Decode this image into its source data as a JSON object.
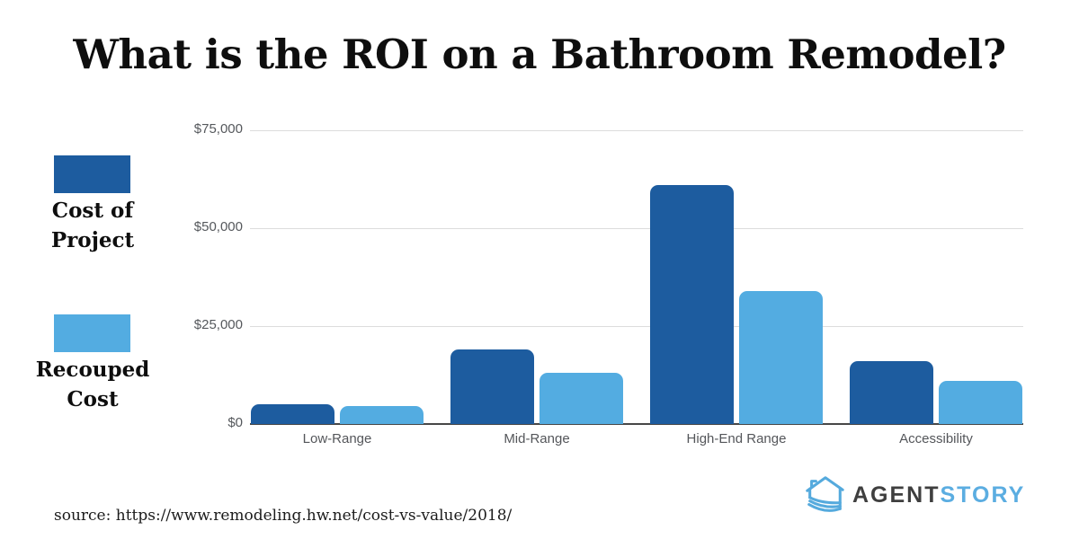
{
  "title": "What is the ROI on a Bathroom Remodel?",
  "legend": {
    "cost_label": "Cost of\nProject",
    "recouped_label": "Recouped\nCost"
  },
  "chart_data": {
    "type": "bar",
    "title": "What is the ROI on a Bathroom Remodel?",
    "categories": [
      "Low-Range",
      "Mid-Range",
      "High-End Range",
      "Accessibility"
    ],
    "series": [
      {
        "name": "Cost of Project",
        "color": "#1d5c9f",
        "values": [
          5000,
          19000,
          61000,
          16000
        ]
      },
      {
        "name": "Recouped Cost",
        "color": "#53ace1",
        "values": [
          4500,
          13000,
          34000,
          11000
        ]
      }
    ],
    "xlabel": "",
    "ylabel": "",
    "ylim": [
      0,
      75000
    ],
    "yticks": [
      {
        "value": 0,
        "label": "$0"
      },
      {
        "value": 25000,
        "label": "$25,000"
      },
      {
        "value": 50000,
        "label": "$50,000"
      },
      {
        "value": 75000,
        "label": "$75,000"
      }
    ],
    "grid": true,
    "legend_position": "left"
  },
  "colors": {
    "cost": "#1d5c9f",
    "recouped": "#53ace1",
    "gridline": "#dcdcdc",
    "axis": "#474747",
    "logo_accent": "#5bade1",
    "logo_text": "#3f3f3f"
  },
  "logo": {
    "part1": "AGENT",
    "part2": "STORY",
    "icon": "house-pages-icon"
  },
  "source_text": "source: https://www.remodeling.hw.net/cost-vs-value/2018/"
}
